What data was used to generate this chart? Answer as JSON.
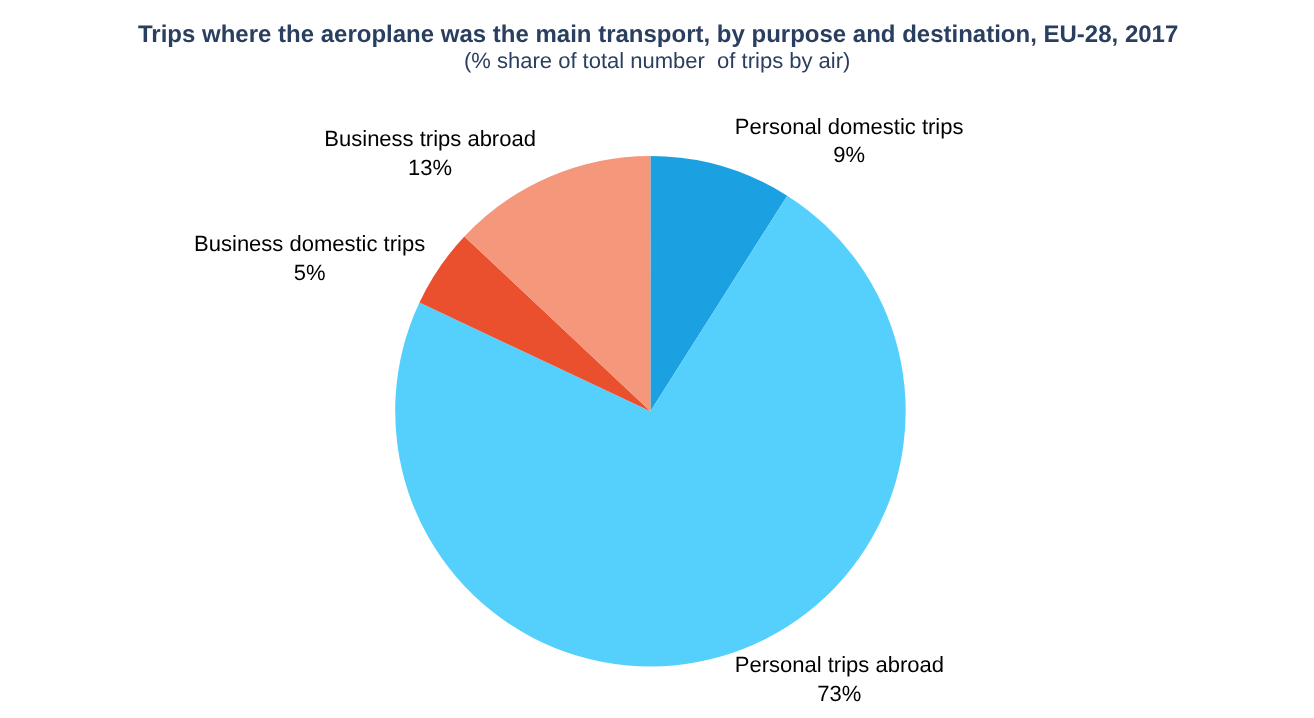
{
  "chart_data": {
    "type": "pie",
    "title": "Trips where the aeroplane was the main transport, by purpose and destination, EU-28, 2017",
    "subtitle": "(% share of total number  of trips by air)",
    "categories": [
      "Personal domestic trips",
      "Personal trips abroad",
      "Business domestic trips",
      "Business trips abroad"
    ],
    "values": [
      9,
      73,
      5,
      13
    ],
    "value_labels": [
      "9%",
      "73%",
      "5%",
      "13%"
    ],
    "colors": [
      "#1ba1e2",
      "#55d0fc",
      "#eb502e",
      "#f4977a"
    ],
    "legend": false
  }
}
